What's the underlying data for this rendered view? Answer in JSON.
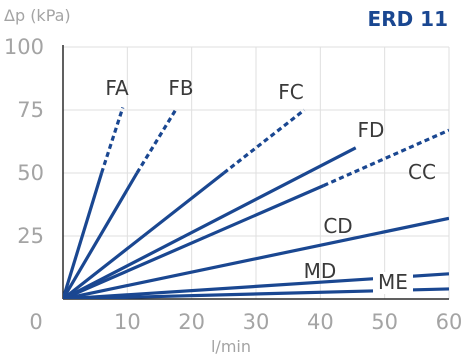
{
  "chart_data": {
    "type": "line",
    "title": "ERD 11",
    "ylabel": "Δp (kPa)",
    "xlabel": "l/min",
    "xlim": [
      0,
      60
    ],
    "ylim": [
      0,
      100
    ],
    "x_ticks": [
      "0",
      "10",
      "20",
      "30",
      "40",
      "50",
      "60"
    ],
    "y_ticks": [
      "100",
      "75",
      "50",
      "25"
    ],
    "grid": true,
    "line_color": "#1a4791",
    "series": [
      {
        "name": "FA",
        "solid": [
          [
            0,
            0
          ],
          [
            6,
            50
          ]
        ],
        "dashed": [
          [
            6,
            50
          ],
          [
            9.3,
            76
          ]
        ]
      },
      {
        "name": "FB",
        "solid": [
          [
            0,
            0
          ],
          [
            11.5,
            50
          ]
        ],
        "dashed": [
          [
            11.5,
            50
          ],
          [
            17.5,
            75
          ]
        ]
      },
      {
        "name": "FC",
        "solid": [
          [
            0,
            0
          ],
          [
            25,
            50
          ]
        ],
        "dashed": [
          [
            25,
            50
          ],
          [
            37.5,
            75
          ]
        ]
      },
      {
        "name": "FD",
        "solid": [
          [
            0,
            0
          ],
          [
            45.5,
            60
          ]
        ],
        "dashed": []
      },
      {
        "name": "CC",
        "solid": [
          [
            0,
            0
          ],
          [
            40.5,
            45
          ]
        ],
        "dashed": [
          [
            40.5,
            45
          ],
          [
            60,
            67
          ]
        ]
      },
      {
        "name": "CD",
        "solid": [
          [
            0,
            0
          ],
          [
            60,
            32
          ]
        ],
        "dashed": []
      },
      {
        "name": "MD",
        "solid": [
          [
            0,
            0
          ],
          [
            60,
            10
          ]
        ],
        "dashed": []
      },
      {
        "name": "ME",
        "solid": [
          [
            0,
            0
          ],
          [
            60,
            4
          ]
        ],
        "dashed": []
      }
    ]
  }
}
